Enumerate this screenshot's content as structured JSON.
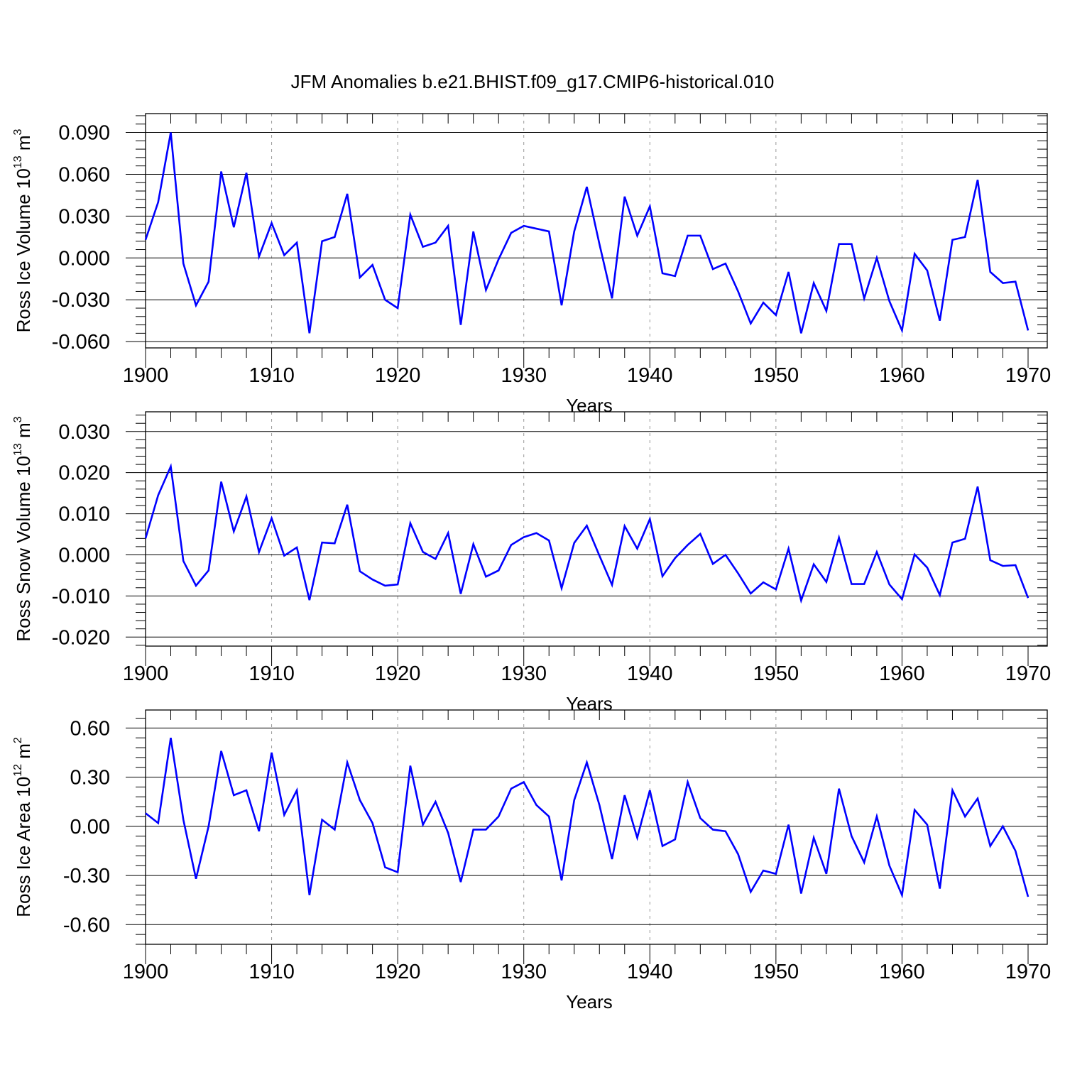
{
  "figure": {
    "title": "JFM Anomalies b.e21.BHIST.f09_g17.CMIP6-historical.010",
    "line_color": "#0000ff",
    "grid_color": "#999999"
  },
  "chart_data": [
    {
      "type": "line",
      "ylabel": "Ross Ice Volume 10",
      "ylabel_exp": "13",
      "ylabel_unit": " m",
      "ylabel_unit_exp": "3",
      "xlabel": "Years",
      "xlim": [
        1900,
        1970
      ],
      "ylim": [
        -0.06,
        0.09
      ],
      "ylim_plot": [
        -0.0645,
        0.1035
      ],
      "xticks": [
        1900,
        1910,
        1920,
        1930,
        1940,
        1950,
        1960,
        1970
      ],
      "xtick_labels": [
        "1900",
        "1910",
        "1920",
        "1930",
        "1940",
        "1950",
        "1960",
        "1970"
      ],
      "yticks": [
        -0.06,
        -0.03,
        0.0,
        0.03,
        0.06,
        0.09
      ],
      "ytick_labels": [
        "-0.060",
        "-0.030",
        "0.000",
        "0.030",
        "0.060",
        "0.090"
      ],
      "series": [
        {
          "name": "Ross Ice Volume",
          "x_start": 1900,
          "values": [
            0.013,
            0.04,
            0.09,
            -0.004,
            -0.034,
            -0.017,
            0.062,
            0.022,
            0.061,
            0.001,
            0.025,
            0.002,
            0.011,
            -0.054,
            0.012,
            0.015,
            0.046,
            -0.014,
            -0.005,
            -0.03,
            -0.036,
            0.031,
            0.008,
            0.011,
            0.023,
            -0.048,
            0.019,
            -0.023,
            -0.001,
            0.018,
            0.023,
            0.021,
            0.019,
            -0.034,
            0.019,
            0.051,
            0.01,
            -0.029,
            0.044,
            0.016,
            0.037,
            -0.011,
            -0.013,
            0.016,
            0.016,
            -0.008,
            -0.004,
            -0.024,
            -0.047,
            -0.032,
            -0.041,
            -0.01,
            -0.054,
            -0.018,
            -0.038,
            0.01,
            0.01,
            -0.029,
            0.0,
            -0.031,
            -0.052,
            0.003,
            -0.009,
            -0.045,
            0.013,
            0.015,
            0.056,
            -0.01,
            -0.018,
            -0.017,
            -0.052
          ]
        }
      ]
    },
    {
      "type": "line",
      "ylabel": "Ross Snow Volume 10",
      "ylabel_exp": "13",
      "ylabel_unit": " m",
      "ylabel_unit_exp": "3",
      "xlabel": "Years",
      "xlim": [
        1900,
        1970
      ],
      "ylim": [
        -0.02,
        0.03
      ],
      "ylim_plot": [
        -0.0222,
        0.0348
      ],
      "xticks": [
        1900,
        1910,
        1920,
        1930,
        1940,
        1950,
        1960,
        1970
      ],
      "xtick_labels": [
        "1900",
        "1910",
        "1920",
        "1930",
        "1940",
        "1950",
        "1960",
        "1970"
      ],
      "yticks": [
        -0.02,
        -0.01,
        0.0,
        0.01,
        0.02,
        0.03
      ],
      "ytick_labels": [
        "-0.020",
        "-0.010",
        "0.000",
        "0.010",
        "0.020",
        "0.030"
      ],
      "series": [
        {
          "name": "Ross Snow Volume",
          "x_start": 1900,
          "values": [
            0.004,
            0.0145,
            0.0215,
            -0.0015,
            -0.0075,
            -0.0038,
            0.0178,
            0.0057,
            0.0142,
            0.0007,
            0.0089,
            -0.0002,
            0.0018,
            -0.011,
            0.003,
            0.0028,
            0.0122,
            -0.004,
            -0.006,
            -0.0075,
            -0.0072,
            0.0077,
            0.0007,
            -0.001,
            0.0053,
            -0.0095,
            0.0026,
            -0.0053,
            -0.0038,
            0.0024,
            0.0043,
            0.0053,
            0.0035,
            -0.0081,
            0.0029,
            0.0071,
            -0.0002,
            -0.0073,
            0.007,
            0.0015,
            0.0087,
            -0.0052,
            -0.0008,
            0.0024,
            0.0051,
            -0.0022,
            0.0,
            -0.0045,
            -0.0094,
            -0.0067,
            -0.0084,
            0.0015,
            -0.0111,
            -0.0023,
            -0.0066,
            0.0042,
            -0.0071,
            -0.0071,
            0.0007,
            -0.0072,
            -0.0108,
            0.0001,
            -0.0031,
            -0.0098,
            0.003,
            0.0039,
            0.0166,
            -0.0013,
            -0.0027,
            -0.0025,
            -0.0105
          ]
        }
      ]
    },
    {
      "type": "line",
      "ylabel": "Ross Ice Area 10",
      "ylabel_exp": "12",
      "ylabel_unit": " m",
      "ylabel_unit_exp": "2",
      "xlabel": "Years",
      "xlim": [
        1900,
        1970
      ],
      "ylim": [
        -0.6,
        0.6
      ],
      "ylim_plot": [
        -0.72,
        0.71
      ],
      "xticks": [
        1900,
        1910,
        1920,
        1930,
        1940,
        1950,
        1960,
        1970
      ],
      "xtick_labels": [
        "1900",
        "1910",
        "1920",
        "1930",
        "1940",
        "1950",
        "1960",
        "1970"
      ],
      "yticks": [
        -0.6,
        -0.3,
        0.0,
        0.3,
        0.6
      ],
      "ytick_labels": [
        "-0.60",
        "-0.30",
        "0.00",
        "0.30",
        "0.60"
      ],
      "series": [
        {
          "name": "Ross Ice Area",
          "x_start": 1900,
          "values": [
            0.08,
            0.02,
            0.54,
            0.04,
            -0.32,
            0.0,
            0.46,
            0.19,
            0.22,
            -0.03,
            0.45,
            0.07,
            0.22,
            -0.42,
            0.04,
            -0.02,
            0.39,
            0.16,
            0.02,
            -0.25,
            -0.28,
            0.37,
            0.01,
            0.15,
            -0.04,
            -0.34,
            -0.02,
            -0.02,
            0.06,
            0.23,
            0.27,
            0.13,
            0.06,
            -0.33,
            0.16,
            0.39,
            0.13,
            -0.2,
            0.19,
            -0.07,
            0.22,
            -0.12,
            -0.08,
            0.27,
            0.05,
            -0.02,
            -0.03,
            -0.17,
            -0.4,
            -0.27,
            -0.29,
            0.01,
            -0.41,
            -0.07,
            -0.29,
            0.23,
            -0.06,
            -0.22,
            0.06,
            -0.24,
            -0.42,
            0.1,
            0.01,
            -0.38,
            0.22,
            0.06,
            0.17,
            -0.12,
            -0.0,
            -0.15,
            -0.43
          ]
        }
      ]
    }
  ]
}
